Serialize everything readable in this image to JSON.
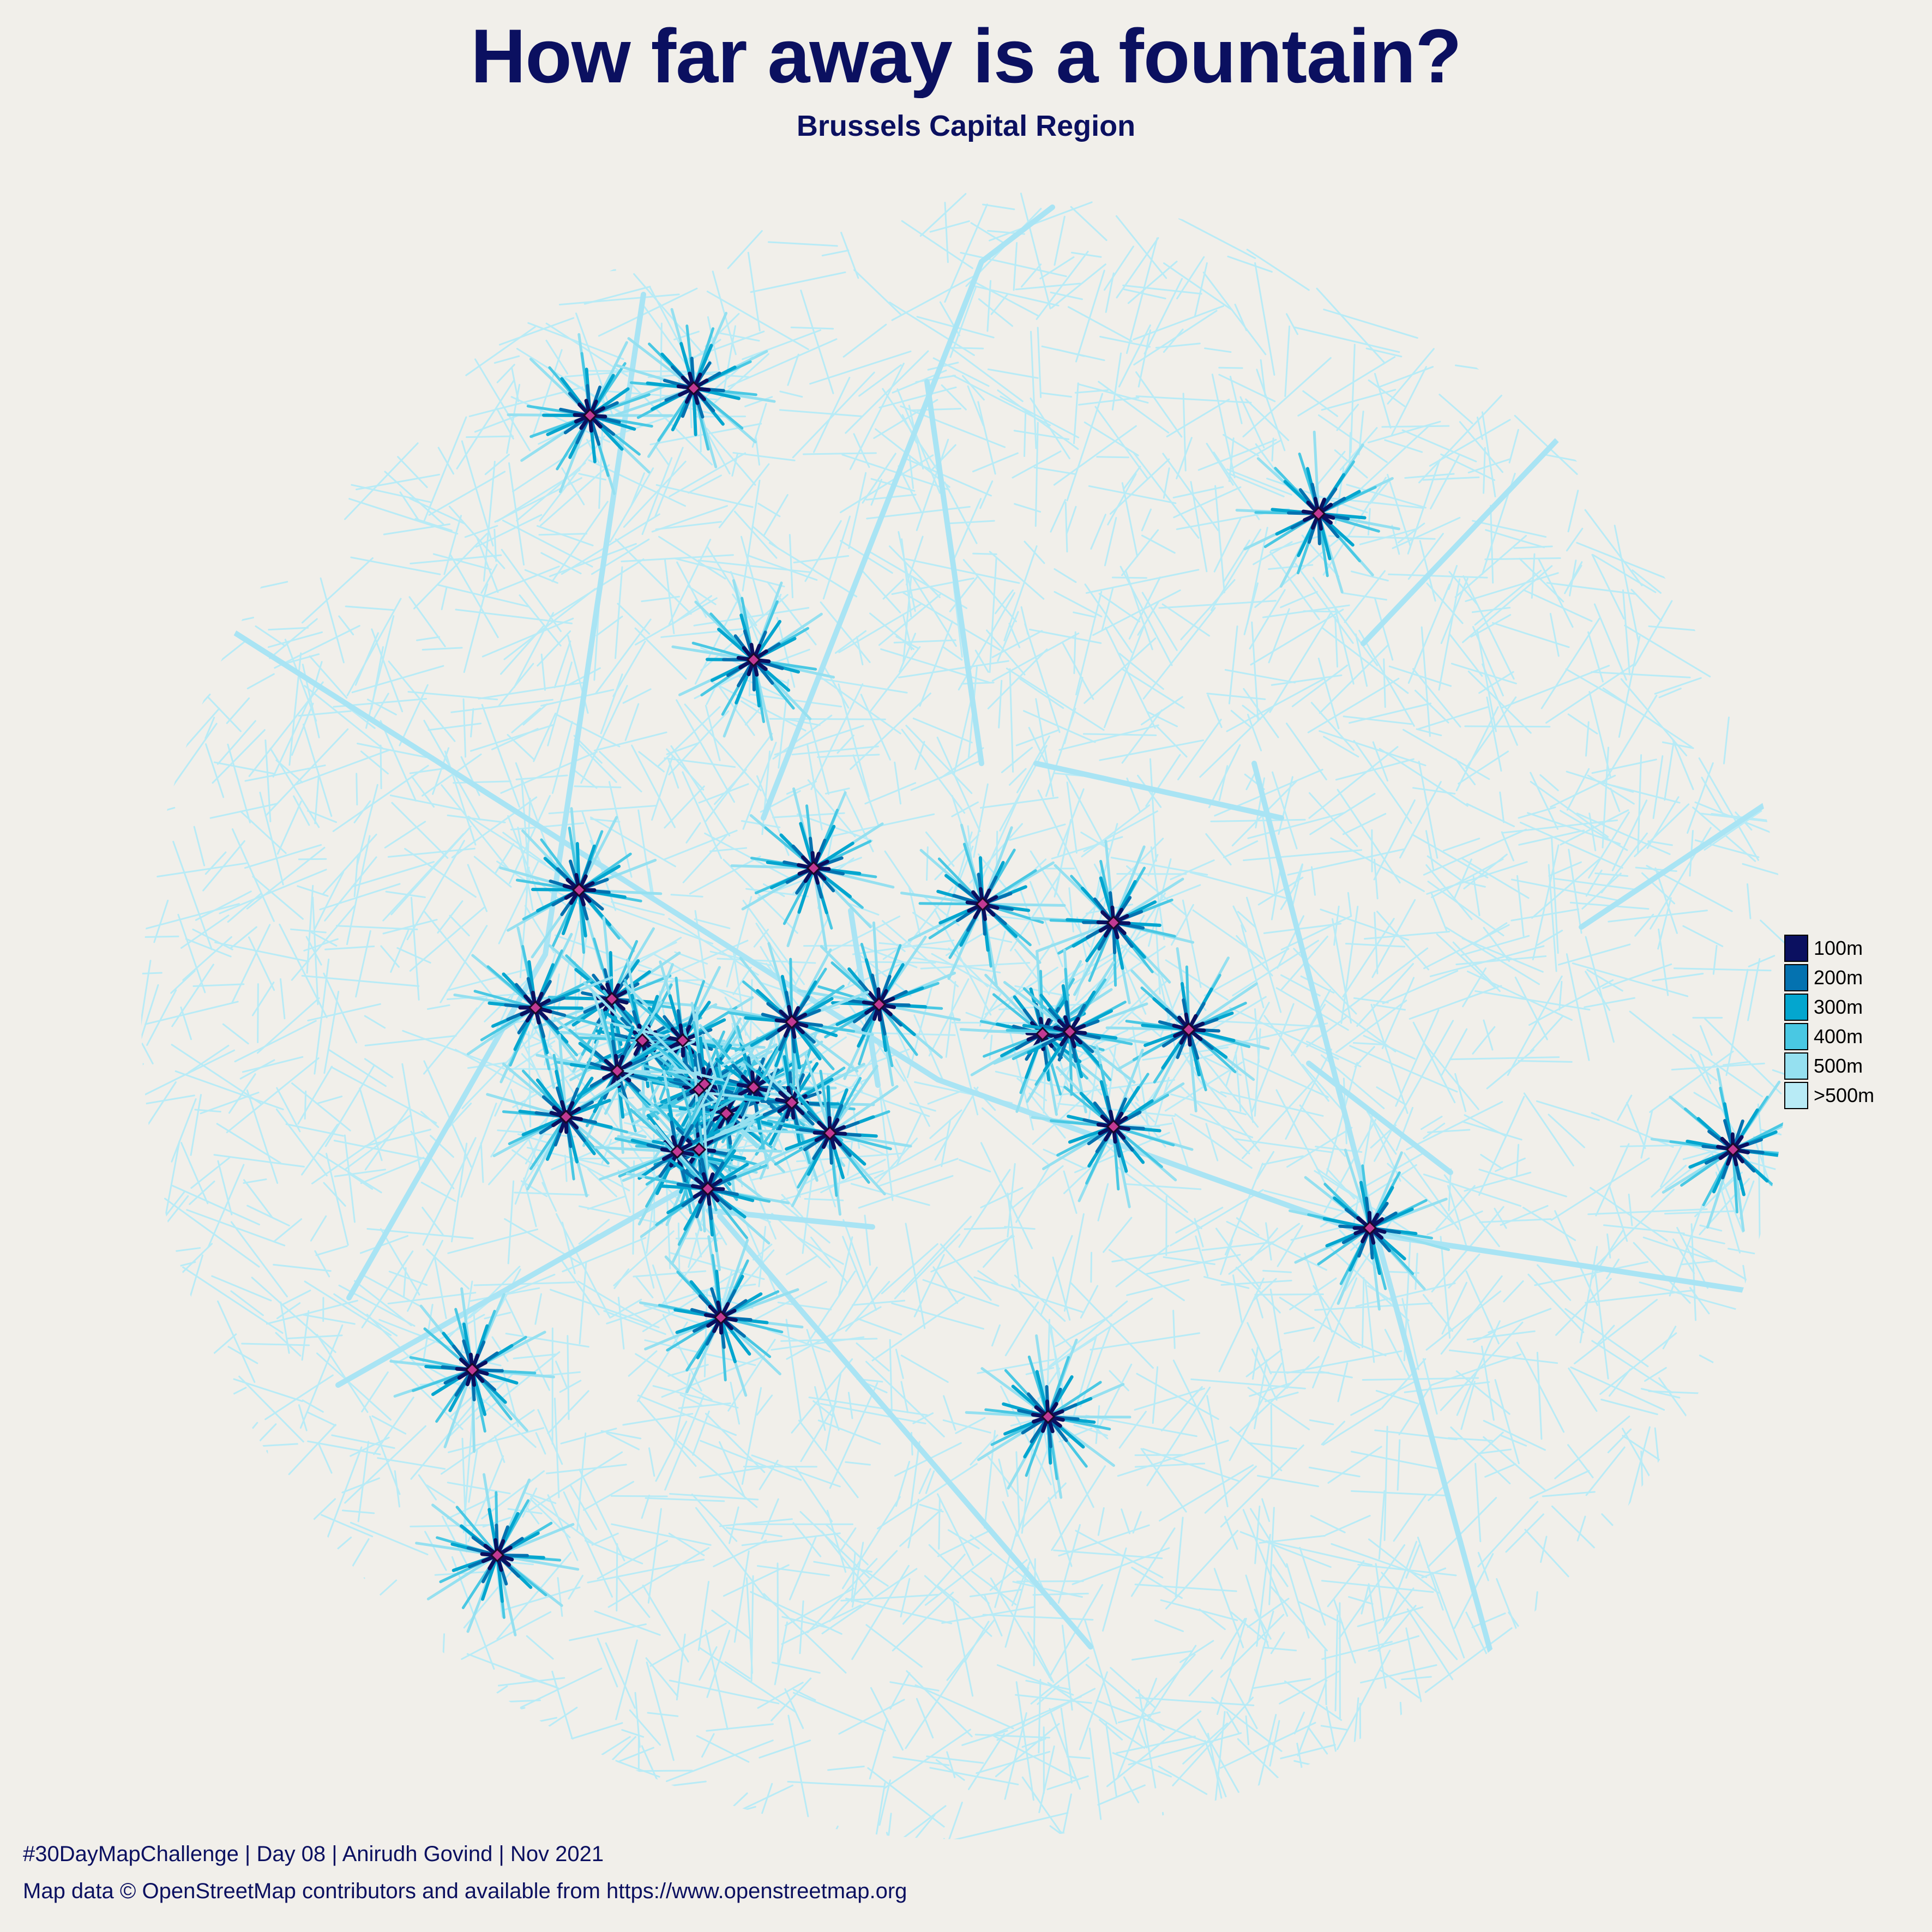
{
  "title": "How far away is a fountain?",
  "subtitle": "Brussels Capital Region",
  "legend": {
    "items": [
      {
        "label": "100m",
        "color": "#0b1060"
      },
      {
        "label": "200m",
        "color": "#0472b0"
      },
      {
        "label": "300m",
        "color": "#03a6cf"
      },
      {
        "label": "400m",
        "color": "#49c8e3"
      },
      {
        "label": "500m",
        "color": "#95e0f0"
      },
      {
        "label": ">500m",
        "color": "#b8ebf6"
      }
    ]
  },
  "footer": {
    "line1": "#30DayMapChallenge | Day 08 | Anirudh Govind | Nov 2021",
    "line2": "Map data © OpenStreetMap contributors and available from https://www.openstreetmap.org"
  },
  "colors": {
    "background": "#f1efea",
    "text": "#0b1060",
    "fountain_marker": "#c23a93"
  },
  "icons": {
    "fountain": "diamond-marker-icon"
  }
}
